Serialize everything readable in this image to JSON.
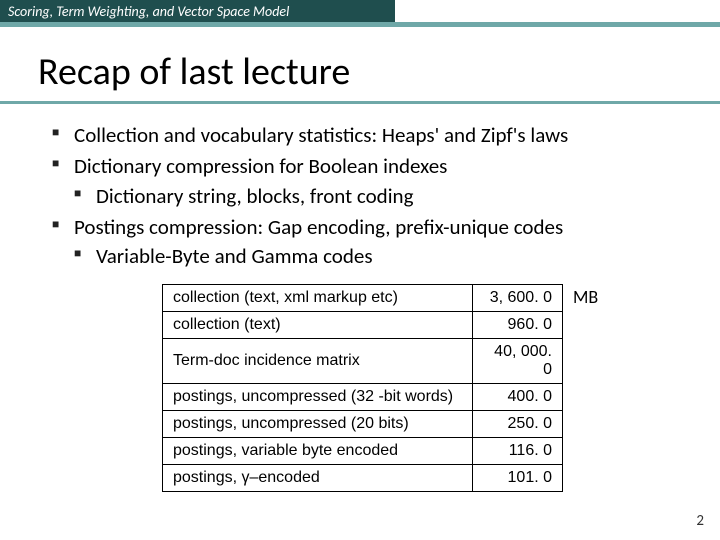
{
  "header": {
    "text": "Scoring, Term Weighting, and Vector Space Model"
  },
  "title": "Recap of last lecture",
  "bullets": [
    {
      "text": "Collection and vocabulary statistics: Heaps' and Zipf's laws"
    },
    {
      "text": "Dictionary compression for Boolean indexes",
      "children": [
        {
          "text": "Dictionary string, blocks, front coding"
        }
      ]
    },
    {
      "text": "Postings compression: Gap encoding, prefix-unique codes",
      "children": [
        {
          "text": "Variable-Byte and Gamma codes"
        }
      ]
    }
  ],
  "table": {
    "unit_label": "MB",
    "rows": [
      {
        "label": "collection (text, xml markup etc)",
        "value": "3, 600. 0"
      },
      {
        "label": "collection (text)",
        "value": "960. 0"
      },
      {
        "label": "Term-doc incidence matrix",
        "value": "40, 000. 0"
      },
      {
        "label": "postings, uncompressed (32 -bit words)",
        "value": "400. 0"
      },
      {
        "label": "postings, uncompressed (20 bits)",
        "value": "250. 0"
      },
      {
        "label": "postings, variable byte encoded",
        "value": "116. 0"
      },
      {
        "label": "postings, γ–encoded",
        "value": "101. 0"
      }
    ]
  },
  "page_number": "2",
  "colors": {
    "header_bg": "#1f4e4e",
    "accent": "#6fa8a8",
    "text": "#000000",
    "background": "#ffffff"
  }
}
